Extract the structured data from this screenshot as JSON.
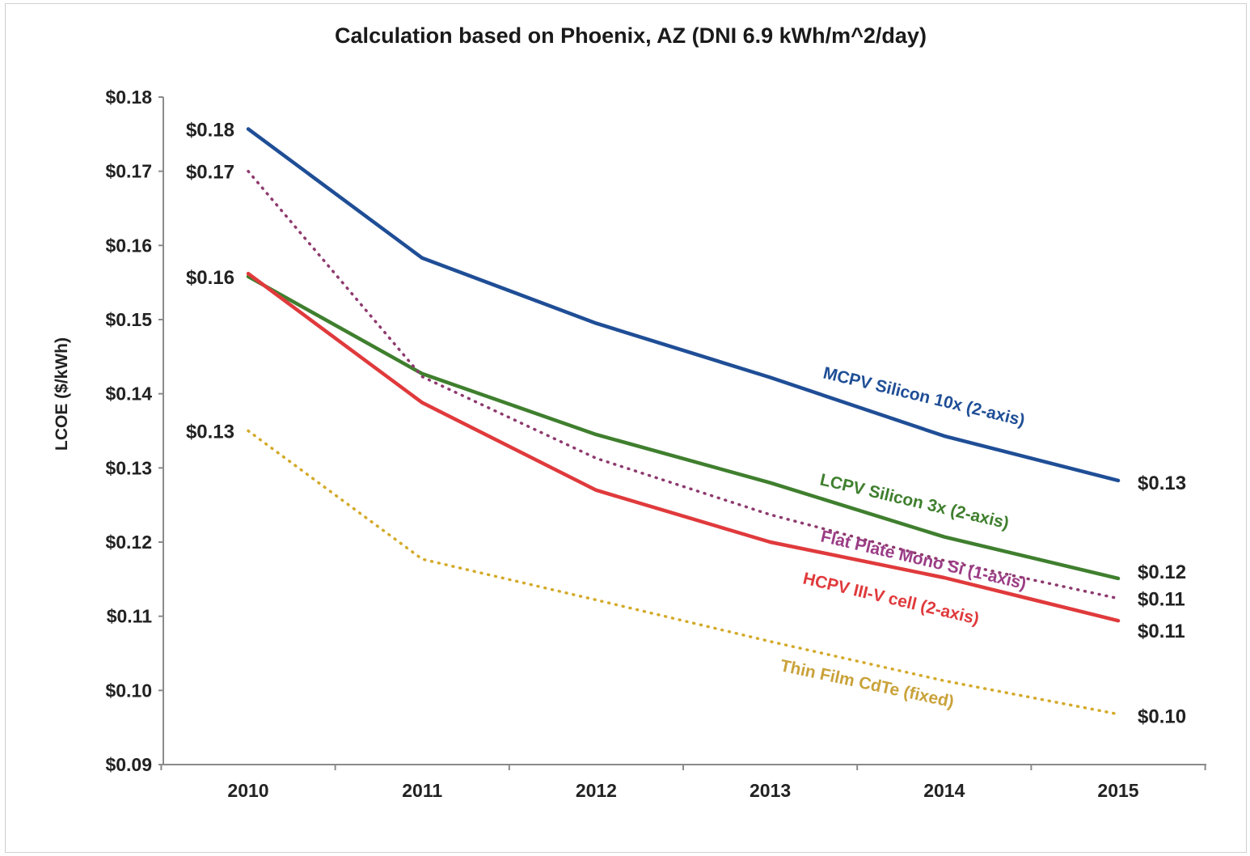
{
  "chart_data": {
    "type": "line",
    "title": "Calculation based on Phoenix, AZ (DNI 6.9 kWh/m^2/day)",
    "xlabel": "",
    "ylabel": "LCOE ($/kWh)",
    "categories": [
      "2010",
      "2011",
      "2012",
      "2013",
      "2014",
      "2015"
    ],
    "ylim": [
      0.09,
      0.18
    ],
    "yticks": [
      0.09,
      0.1,
      0.11,
      0.12,
      0.13,
      0.14,
      0.15,
      0.16,
      0.17,
      0.18
    ],
    "ytick_labels": [
      "$0.09",
      "$0.10",
      "$0.11",
      "$0.12",
      "$0.13",
      "$0.14",
      "$0.15",
      "$0.16",
      "$0.17",
      "$0.18"
    ],
    "grid": false,
    "series": [
      {
        "name": "MCPV Silicon 10x (2-axis)",
        "color": "#1f4e96",
        "style": "solid",
        "label_color": "#1f4e96",
        "values": [
          0.1757,
          0.1583,
          0.1495,
          0.1422,
          0.1343,
          0.1283
        ],
        "start_label": "$0.18",
        "end_label": "$0.13"
      },
      {
        "name": "LCPV Silicon 3x (2-axis)",
        "color": "#3f7f2e",
        "style": "solid",
        "label_color": "#3f7f2e",
        "values": [
          0.1558,
          0.1427,
          0.1345,
          0.128,
          0.1207,
          0.1151
        ],
        "start_label": "$0.16",
        "end_label": "$0.12"
      },
      {
        "name": "Flat Plate Mono Si (1-axis)",
        "color": "#8e3a6e",
        "style": "dotted",
        "label_color": "#9b3d86",
        "values": [
          0.17,
          0.1423,
          0.1313,
          0.1237,
          0.1175,
          0.1124
        ],
        "start_label": "$0.17",
        "end_label": "$0.11"
      },
      {
        "name": "HCPV III-V cell (2-axis)",
        "color": "#e03a3c",
        "style": "solid",
        "label_color": "#e03a3c",
        "values": [
          0.1562,
          0.1388,
          0.127,
          0.12,
          0.1152,
          0.1094
        ],
        "start_label": "",
        "end_label": "$0.11"
      },
      {
        "name": "Thin Film CdTe (fixed)",
        "color": "#d4aa2a",
        "style": "dotted",
        "label_color": "#c9a23a",
        "values": [
          0.135,
          0.1177,
          0.1122,
          0.1066,
          0.1013,
          0.0968
        ],
        "start_label": "$0.13",
        "end_label": "$0.10"
      }
    ]
  }
}
